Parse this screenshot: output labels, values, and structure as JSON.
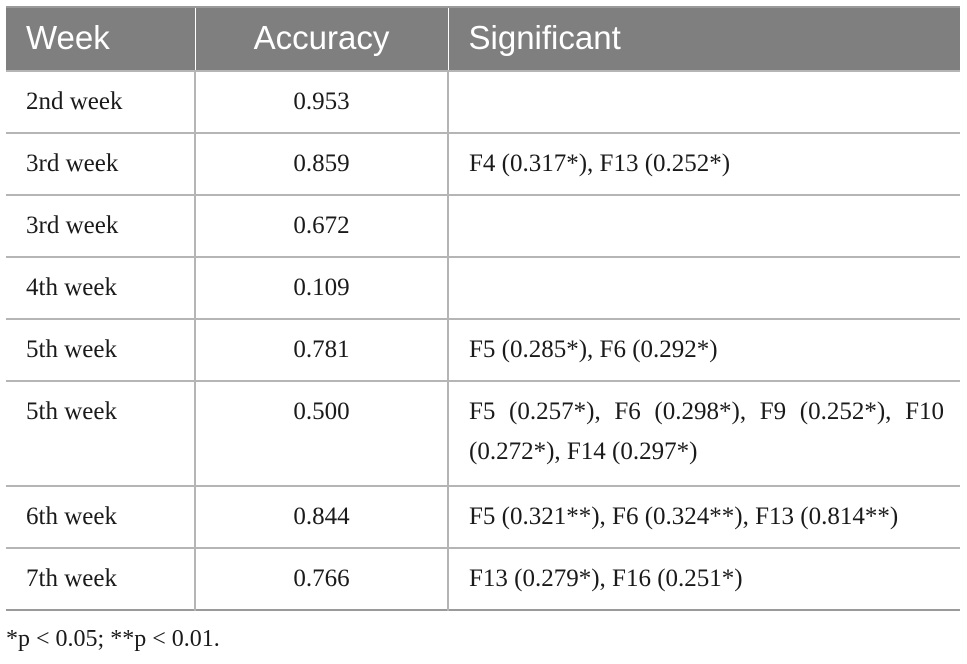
{
  "table": {
    "headers": [
      "Week",
      "Accuracy",
      "Significant"
    ],
    "rows": [
      {
        "week": "2nd week",
        "accuracy": "0.953",
        "significant": ""
      },
      {
        "week": "3rd week",
        "accuracy": "0.859",
        "significant": "F4 (0.317*), F13 (0.252*)"
      },
      {
        "week": "3rd week",
        "accuracy": "0.672",
        "significant": ""
      },
      {
        "week": "4th week",
        "accuracy": "0.109",
        "significant": ""
      },
      {
        "week": "5th week",
        "accuracy": "0.781",
        "significant": "F5 (0.285*), F6 (0.292*)"
      },
      {
        "week": "5th week",
        "accuracy": "0.500",
        "significant": "F5 (0.257*), F6 (0.298*), F9 (0.252*), F10 (0.272*), F14 (0.297*)"
      },
      {
        "week": "6th week",
        "accuracy": "0.844",
        "significant": "F5 (0.321**), F6 (0.324**), F13 (0.814**)"
      },
      {
        "week": "7th week",
        "accuracy": "0.766",
        "significant": "F13 (0.279*), F16 (0.251*)"
      }
    ]
  },
  "footnote": "*p < 0.05; **p < 0.01."
}
